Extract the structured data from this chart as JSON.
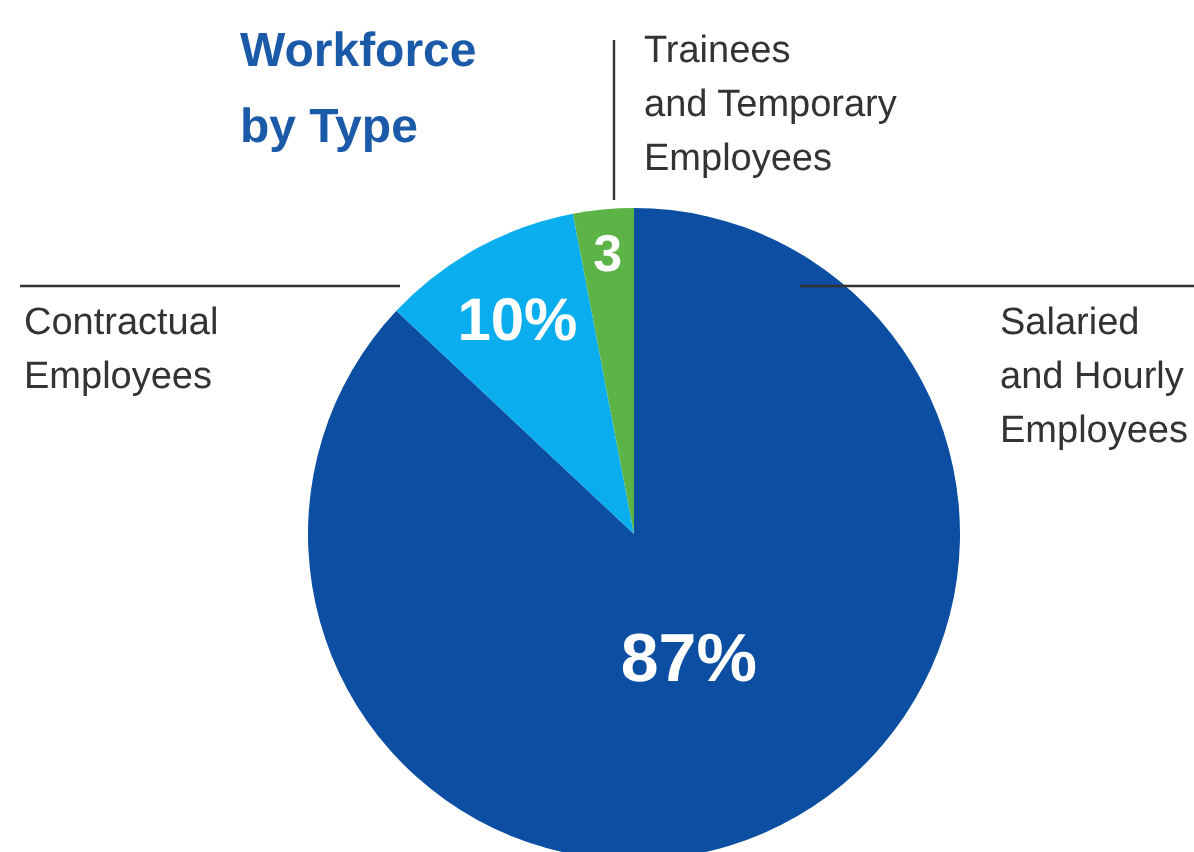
{
  "chart_data": {
    "type": "pie",
    "title": "Workforce by Type",
    "categories": [
      "Salaried and Hourly Employees",
      "Contractual Employees",
      "Trainees and Temporary Employees"
    ],
    "values": [
      87,
      10,
      3
    ],
    "colors": [
      "#0b4ea2",
      "#0aaeef",
      "#5cb447"
    ],
    "value_labels": [
      "87%",
      "10%",
      "3"
    ]
  }
}
